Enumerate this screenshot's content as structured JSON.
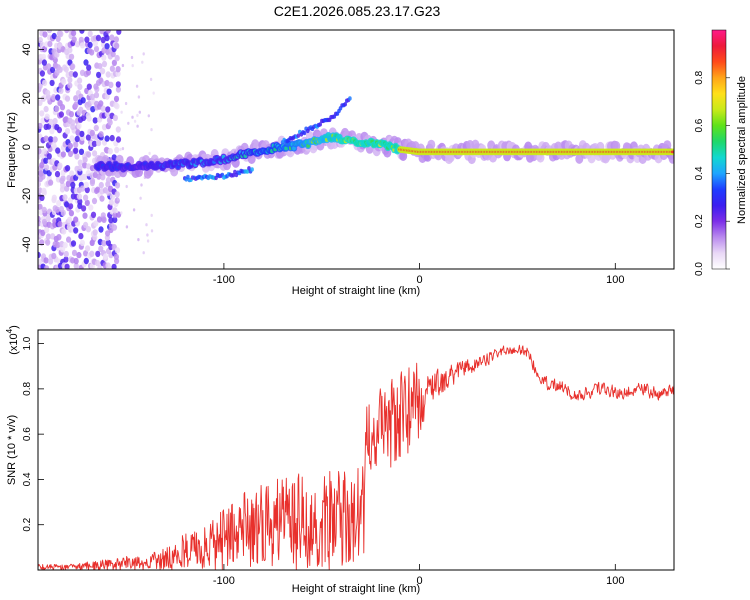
{
  "title": "C2E1.2026.085.23.17.G23",
  "colors": {
    "axis": "#000000",
    "snr_line": "#e8302c",
    "background": "#ffffff"
  },
  "chart_data": [
    {
      "type": "heatmap",
      "name": "spectrogram",
      "xlabel": "Height of straight line (km)",
      "ylabel": "Frequency (Hz)",
      "xlim": [
        -195,
        130
      ],
      "ylim": [
        -50,
        48
      ],
      "xticks": [
        -100,
        0,
        100
      ],
      "yticks": [
        -40,
        -20,
        0,
        20,
        40
      ],
      "colorbar": {
        "label": "Normalized spectral amplitude",
        "range": [
          0,
          1
        ],
        "ticks": [
          "0.0",
          "0.2",
          "0.4",
          "0.6",
          "0.8"
        ],
        "colormap": [
          "#ffffff",
          "#e9d8f6",
          "#b989ee",
          "#7c2ee8",
          "#3b1ef0",
          "#1e3cff",
          "#1ea5ff",
          "#12d8d0",
          "#1fd86a",
          "#5fe21a",
          "#c8ea1a",
          "#ffe01a",
          "#ffa51a",
          "#ff4a1a",
          "#ee1a3b",
          "#ff1a8a"
        ]
      },
      "features": [
        {
          "label": "noise-band",
          "x_range": [
            -195,
            -155
          ],
          "freq_range": [
            -50,
            48
          ],
          "amplitude": "low"
        },
        {
          "label": "main-trend",
          "points": [
            [
              -165,
              -8
            ],
            [
              -140,
              -8
            ],
            [
              -120,
              -7
            ],
            [
              -100,
              -5
            ],
            [
              -80,
              -1
            ],
            [
              -60,
              1
            ],
            [
              -45,
              4
            ],
            [
              -30,
              2
            ],
            [
              -20,
              1
            ],
            [
              -10,
              -1
            ],
            [
              0,
              -2
            ],
            [
              20,
              -2
            ],
            [
              60,
              -2
            ],
            [
              100,
              -2
            ],
            [
              130,
              -2
            ]
          ],
          "amplitude": "rising"
        },
        {
          "label": "upper-branch",
          "points": [
            [
              -70,
              2
            ],
            [
              -55,
              8
            ],
            [
              -45,
              12
            ],
            [
              -35,
              20
            ]
          ],
          "amplitude": "low"
        },
        {
          "label": "lower-branch",
          "points": [
            [
              -120,
              -13
            ],
            [
              -100,
              -12
            ],
            [
              -85,
              -9
            ]
          ],
          "amplitude": "low"
        }
      ]
    },
    {
      "type": "line",
      "name": "snr",
      "xlabel": "Height of straight line (km)",
      "ylabel": "SNR (10 * v/v)",
      "scale_label": "(x10",
      "scale_exp": "4",
      "xlim": [
        -195,
        130
      ],
      "ylim": [
        0,
        1.06
      ],
      "xticks": [
        -100,
        0,
        100
      ],
      "yticks": [
        0.2,
        0.4,
        0.6,
        0.8,
        1.0
      ],
      "series": [
        {
          "name": "SNR",
          "x": [
            -195,
            -180,
            -165,
            -150,
            -138,
            -130,
            -120,
            -110,
            -100,
            -90,
            -80,
            -70,
            -60,
            -50,
            -40,
            -33,
            -28,
            -22,
            -15,
            -10,
            -5,
            0,
            5,
            10,
            15,
            20,
            25,
            30,
            35,
            40,
            45,
            50,
            55,
            60,
            65,
            70,
            75,
            80,
            85,
            90,
            95,
            100,
            105,
            110,
            115,
            120,
            125,
            130
          ],
          "mean": [
            0.02,
            0.02,
            0.03,
            0.045,
            0.06,
            0.07,
            0.1,
            0.12,
            0.15,
            0.18,
            0.2,
            0.21,
            0.22,
            0.22,
            0.22,
            0.22,
            0.55,
            0.58,
            0.6,
            0.63,
            0.67,
            0.72,
            0.78,
            0.82,
            0.86,
            0.88,
            0.9,
            0.92,
            0.94,
            0.96,
            0.97,
            0.98,
            0.96,
            0.88,
            0.82,
            0.82,
            0.8,
            0.76,
            0.78,
            0.8,
            0.8,
            0.79,
            0.79,
            0.79,
            0.8,
            0.78,
            0.78,
            0.8
          ],
          "spread": [
            0.005,
            0.005,
            0.01,
            0.015,
            0.02,
            0.03,
            0.06,
            0.1,
            0.12,
            0.16,
            0.19,
            0.2,
            0.21,
            0.22,
            0.22,
            0.22,
            0.16,
            0.18,
            0.2,
            0.2,
            0.2,
            0.18,
            0.12,
            0.1,
            0.08,
            0.06,
            0.05,
            0.04,
            0.04,
            0.03,
            0.03,
            0.03,
            0.04,
            0.04,
            0.04,
            0.04,
            0.04,
            0.04,
            0.04,
            0.04,
            0.04,
            0.04,
            0.04,
            0.04,
            0.04,
            0.04,
            0.04,
            0.04
          ]
        }
      ],
      "peak_max": 1.06
    }
  ]
}
